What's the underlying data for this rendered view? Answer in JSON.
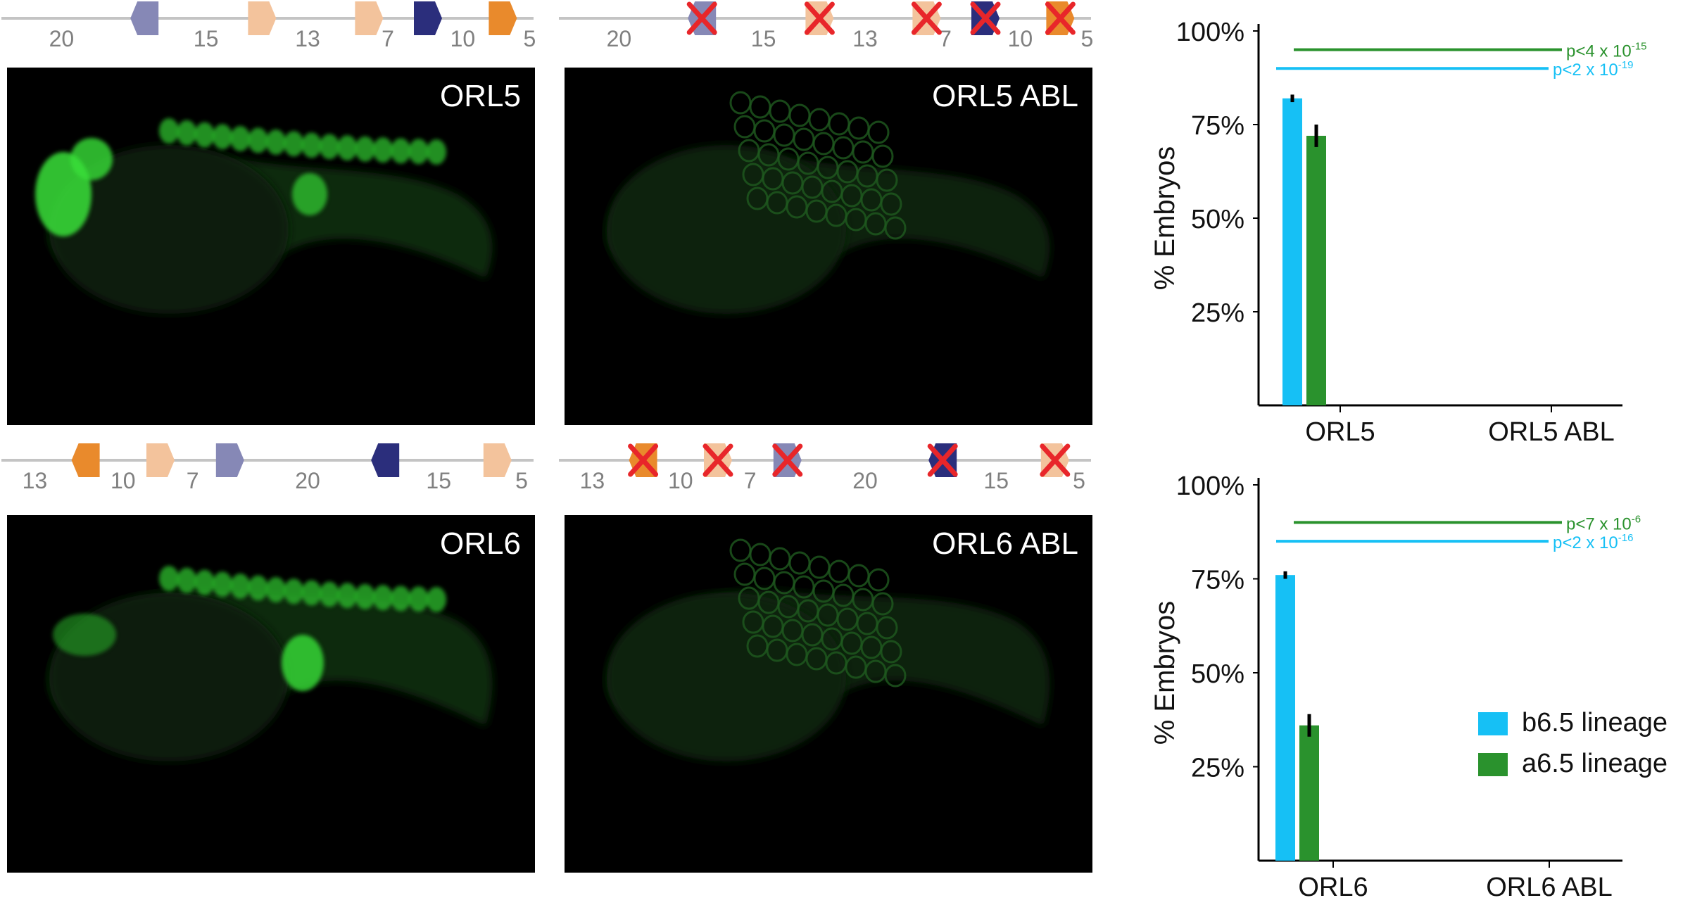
{
  "colors": {
    "light_blue_purple": "#8688b6",
    "light_orange": "#f3c39c",
    "navy": "#2b2e7c",
    "orange": "#e98a2c",
    "red_x": "#e8262a",
    "track_line": "#c4c4c4",
    "tick_number": "#808080",
    "b_lineage": "#16c0f5",
    "a_lineage": "#2a922d",
    "fluor_bright": "#38e038",
    "fluor_dim": "#1b5a1b"
  },
  "tracks": [
    {
      "id": "orl5",
      "numbers": [
        {
          "t": "20",
          "x": 0.115
        },
        {
          "t": "15",
          "x": 0.385
        },
        {
          "t": "13",
          "x": 0.575
        },
        {
          "t": "7",
          "x": 0.725
        },
        {
          "t": "10",
          "x": 0.865
        },
        {
          "t": "5",
          "x": 0.99
        }
      ],
      "sites": [
        {
          "x": 0.27,
          "color": "light_blue_purple",
          "dir": "left",
          "x_out": false
        },
        {
          "x": 0.49,
          "color": "light_orange",
          "dir": "right",
          "x_out": false
        },
        {
          "x": 0.69,
          "color": "light_orange",
          "dir": "right",
          "x_out": false
        },
        {
          "x": 0.8,
          "color": "navy",
          "dir": "right",
          "x_out": false
        },
        {
          "x": 0.94,
          "color": "orange",
          "dir": "right",
          "x_out": false
        }
      ]
    },
    {
      "id": "orl5_abl",
      "numbers": [
        {
          "t": "20",
          "x": 0.115
        },
        {
          "t": "15",
          "x": 0.385
        },
        {
          "t": "13",
          "x": 0.575
        },
        {
          "t": "7",
          "x": 0.725
        },
        {
          "t": "10",
          "x": 0.865
        },
        {
          "t": "5",
          "x": 0.99
        }
      ],
      "sites": [
        {
          "x": 0.27,
          "color": "light_blue_purple",
          "dir": "left",
          "x_out": true
        },
        {
          "x": 0.49,
          "color": "light_orange",
          "dir": "right",
          "x_out": true
        },
        {
          "x": 0.69,
          "color": "light_orange",
          "dir": "right",
          "x_out": true
        },
        {
          "x": 0.8,
          "color": "navy",
          "dir": "right",
          "x_out": true
        },
        {
          "x": 0.94,
          "color": "orange",
          "dir": "right",
          "x_out": true
        }
      ]
    },
    {
      "id": "orl6",
      "numbers": [
        {
          "t": "13",
          "x": 0.065
        },
        {
          "t": "10",
          "x": 0.23
        },
        {
          "t": "7",
          "x": 0.36
        },
        {
          "t": "20",
          "x": 0.575
        },
        {
          "t": "15",
          "x": 0.82
        },
        {
          "t": "5",
          "x": 0.975
        }
      ],
      "sites": [
        {
          "x": 0.16,
          "color": "orange",
          "dir": "left",
          "x_out": false
        },
        {
          "x": 0.3,
          "color": "light_orange",
          "dir": "right",
          "x_out": false
        },
        {
          "x": 0.43,
          "color": "light_blue_purple",
          "dir": "right",
          "x_out": false
        },
        {
          "x": 0.72,
          "color": "navy",
          "dir": "left",
          "x_out": false
        },
        {
          "x": 0.93,
          "color": "light_orange",
          "dir": "right",
          "x_out": false
        }
      ]
    },
    {
      "id": "orl6_abl",
      "numbers": [
        {
          "t": "13",
          "x": 0.065
        },
        {
          "t": "10",
          "x": 0.23
        },
        {
          "t": "7",
          "x": 0.36
        },
        {
          "t": "20",
          "x": 0.575
        },
        {
          "t": "15",
          "x": 0.82
        },
        {
          "t": "5",
          "x": 0.975
        }
      ],
      "sites": [
        {
          "x": 0.16,
          "color": "orange",
          "dir": "left",
          "x_out": true
        },
        {
          "x": 0.3,
          "color": "light_orange",
          "dir": "right",
          "x_out": true
        },
        {
          "x": 0.43,
          "color": "light_blue_purple",
          "dir": "right",
          "x_out": true
        },
        {
          "x": 0.72,
          "color": "navy",
          "dir": "left",
          "x_out": true
        },
        {
          "x": 0.93,
          "color": "light_orange",
          "dir": "right",
          "x_out": true
        }
      ]
    }
  ],
  "panels": {
    "orl5": {
      "label": "ORL5",
      "expression": "strong"
    },
    "orl5_abl": {
      "label": "ORL5 ABL",
      "expression": "faint"
    },
    "orl6": {
      "label": "ORL6",
      "expression": "strong"
    },
    "orl6_abl": {
      "label": "ORL6 ABL",
      "expression": "faint"
    }
  },
  "chart_data": [
    {
      "type": "bar",
      "ylabel": "% Embryos",
      "ylim": [
        0,
        100
      ],
      "yticks": [
        25,
        50,
        75,
        100
      ],
      "ytick_labels": [
        "25%",
        "50%",
        "75%",
        "100%"
      ],
      "categories": [
        "ORL5",
        "ORL5 ABL"
      ],
      "series": [
        {
          "color": "b_lineage",
          "values": [
            82,
            0
          ],
          "errors": [
            1,
            0
          ]
        },
        {
          "color": "a_lineage",
          "values": [
            72,
            0
          ],
          "errors": [
            3,
            0
          ]
        }
      ],
      "annotations": [
        {
          "text": "p<4 x 10",
          "exp": "-15",
          "color": "a_lineage",
          "y": 95
        },
        {
          "text": "p<2 x 10",
          "exp": "-19",
          "color": "b_lineage",
          "y": 90
        }
      ]
    },
    {
      "type": "bar",
      "ylabel": "% Embryos",
      "ylim": [
        0,
        100
      ],
      "yticks": [
        25,
        50,
        75,
        100
      ],
      "ytick_labels": [
        "25%",
        "50%",
        "75%",
        "100%"
      ],
      "categories": [
        "ORL6",
        "ORL6 ABL"
      ],
      "series": [
        {
          "color": "b_lineage",
          "values": [
            76,
            0
          ],
          "errors": [
            1,
            0
          ]
        },
        {
          "color": "a_lineage",
          "values": [
            36,
            0
          ],
          "errors": [
            3,
            0
          ]
        }
      ],
      "annotations": [
        {
          "text": "p<7 x 10",
          "exp": "-6",
          "color": "a_lineage",
          "y": 90
        },
        {
          "text": "p<2 x 10",
          "exp": "-16",
          "color": "b_lineage",
          "y": 85
        }
      ]
    }
  ],
  "legend": [
    {
      "label": "b6.5 lineage",
      "color": "b_lineage"
    },
    {
      "label": "a6.5 lineage",
      "color": "a_lineage"
    }
  ]
}
